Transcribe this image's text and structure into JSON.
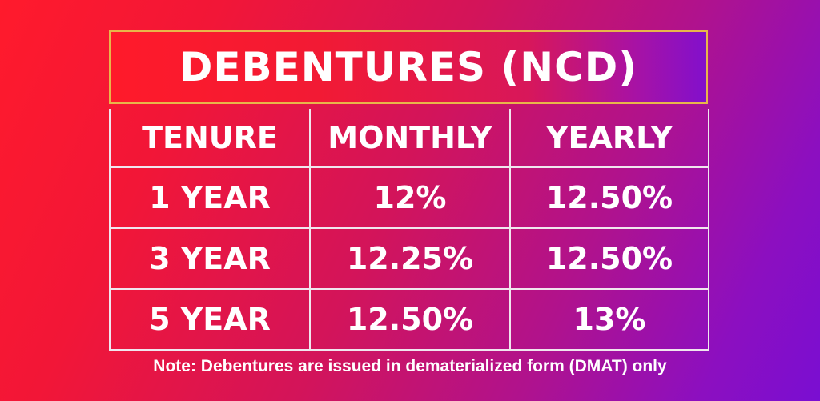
{
  "banner": {
    "title": "DEBENTURES (NCD)"
  },
  "table": {
    "headers": [
      "TENURE",
      "MONTHLY",
      "YEARLY"
    ],
    "rows": [
      {
        "tenure": "1 YEAR",
        "monthly": "12%",
        "yearly": "12.50%"
      },
      {
        "tenure": "3 YEAR",
        "monthly": "12.25%",
        "yearly": "12.50%"
      },
      {
        "tenure": "5 YEAR",
        "monthly": "12.50%",
        "yearly": "13%"
      }
    ]
  },
  "note": "Note: Debentures are issued in dematerialized form (DMAT) only",
  "colors": {
    "gradient_start": "#ff1a2c",
    "gradient_end": "#7a0ed2",
    "banner_border": "#e8b64a",
    "grid_lines": "#f0e6ee",
    "text": "#ffffff"
  }
}
